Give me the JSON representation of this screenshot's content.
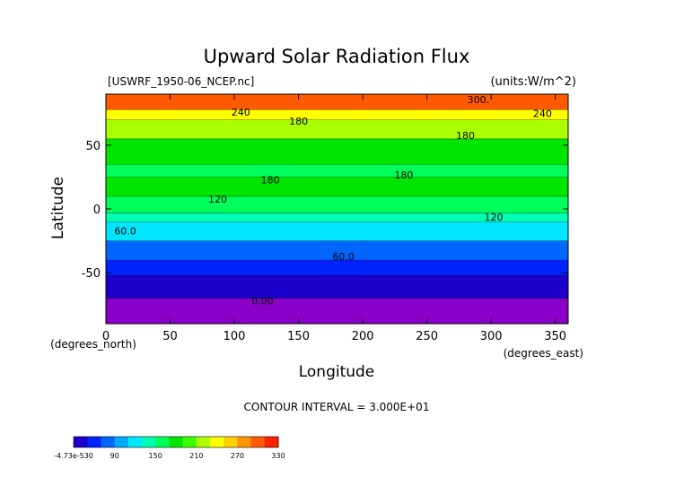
{
  "chart_data": {
    "type": "heatmap",
    "title": "Upward Solar Radiation Flux",
    "subtitle_left": "[USWRF_1950-06_NCEP.nc]",
    "subtitle_right": "(units:W/m^2)",
    "xlabel": "Longitude",
    "ylabel": "Latitude",
    "x_unit_label": "(degrees_east)",
    "y_unit_label": "(degrees_north)",
    "xlim": [
      0,
      360
    ],
    "ylim": [
      -90,
      90
    ],
    "x_ticks": [
      0,
      50,
      100,
      150,
      200,
      250,
      300,
      350
    ],
    "y_ticks": [
      -50,
      0,
      50
    ],
    "contour_interval_text": "CONTOUR INTERVAL = 3.000E+01",
    "contour_labels": [
      {
        "text": "300.",
        "lon": 290,
        "lat": 83
      },
      {
        "text": "240",
        "lon": 105,
        "lat": 73
      },
      {
        "text": "240",
        "lon": 340,
        "lat": 72
      },
      {
        "text": "180",
        "lon": 150,
        "lat": 66
      },
      {
        "text": "180",
        "lon": 280,
        "lat": 55
      },
      {
        "text": "180",
        "lon": 232,
        "lat": 24
      },
      {
        "text": "180",
        "lon": 128,
        "lat": 20
      },
      {
        "text": "120",
        "lon": 87,
        "lat": 5
      },
      {
        "text": "120",
        "lon": 302,
        "lat": -9
      },
      {
        "text": "60.0",
        "lon": 15,
        "lat": -20
      },
      {
        "text": "60.0",
        "lon": 185,
        "lat": -40
      },
      {
        "text": "0.00",
        "lon": 122,
        "lat": -75
      }
    ],
    "latitude_bands": [
      {
        "lat": [
          -90,
          -70
        ],
        "value": 0
      },
      {
        "lat": [
          -70,
          -52
        ],
        "value": 15
      },
      {
        "lat": [
          -52,
          -40
        ],
        "value": 40
      },
      {
        "lat": [
          -40,
          -25
        ],
        "value": 65
      },
      {
        "lat": [
          -25,
          -10
        ],
        "value": 90
      },
      {
        "lat": [
          -10,
          -3
        ],
        "value": 115
      },
      {
        "lat": [
          -3,
          10
        ],
        "value": 150
      },
      {
        "lat": [
          10,
          25
        ],
        "value": 170
      },
      {
        "lat": [
          25,
          35
        ],
        "value": 150
      },
      {
        "lat": [
          35,
          55
        ],
        "value": 170
      },
      {
        "lat": [
          55,
          70
        ],
        "value": 200
      },
      {
        "lat": [
          70,
          78
        ],
        "value": 240
      },
      {
        "lat": [
          78,
          90
        ],
        "value": 300
      }
    ],
    "colorbar": {
      "tick_labels": [
        "-4.73e-530",
        "90",
        "150",
        "210",
        "270",
        "330"
      ],
      "colors": [
        "#1a00c8",
        "#0022ff",
        "#0066ff",
        "#00aaff",
        "#00e6ff",
        "#00ffb4",
        "#00ff5a",
        "#00e600",
        "#3cff00",
        "#aaff00",
        "#ffff00",
        "#ffd200",
        "#ff9600",
        "#ff5a00",
        "#ff2000"
      ]
    }
  }
}
